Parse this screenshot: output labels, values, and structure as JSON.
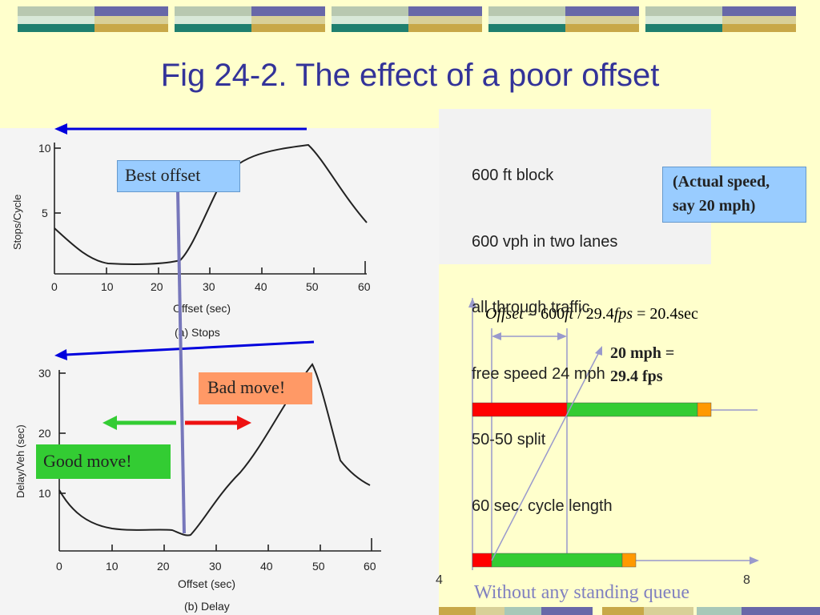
{
  "slide": {
    "title": "Fig 24-2. The effect of a poor offset",
    "colors": {
      "background": "#FFFFCC",
      "title": "#333399",
      "caption": "#8080C0"
    }
  },
  "top_chart": {
    "ylabel": "Stops/Cycle",
    "xlabel": "Offset (sec)",
    "caption": "(a) Stops",
    "y_ticks": [
      "10",
      "5"
    ],
    "x_ticks": [
      "0",
      "10",
      "20",
      "30",
      "40",
      "50",
      "60"
    ]
  },
  "bottom_chart": {
    "ylabel": "Delay/Veh (sec)",
    "xlabel": "Offset (sec)",
    "caption": "(b) Delay",
    "y_ticks": [
      "30",
      "20",
      "10"
    ],
    "x_ticks": [
      "0",
      "10",
      "20",
      "30",
      "40",
      "50",
      "60"
    ]
  },
  "labels": {
    "best_offset": "Best offset",
    "bad_move": "Bad move!",
    "good_move": "Good move!",
    "actual_speed_line1": "(Actual speed,",
    "actual_speed_line2": "say 20 mph)"
  },
  "conditions": [
    "600 ft block",
    "600 vph in two lanes",
    "all through traffic",
    "free speed 24 mph",
    "50-50 split",
    "60 sec. cycle length"
  ],
  "offset_formula": {
    "lhs": "Offset",
    "distance": "600",
    "dist_unit": "ft",
    "speed": "29.4",
    "speed_unit": "fps",
    "result": "20.4",
    "result_unit": "sec"
  },
  "speed_note": {
    "line1": "20 mph =",
    "line2": "29.4 fps"
  },
  "bottom_caption": "Without any standing queue",
  "page_fragment": "4",
  "page_number": "8"
}
